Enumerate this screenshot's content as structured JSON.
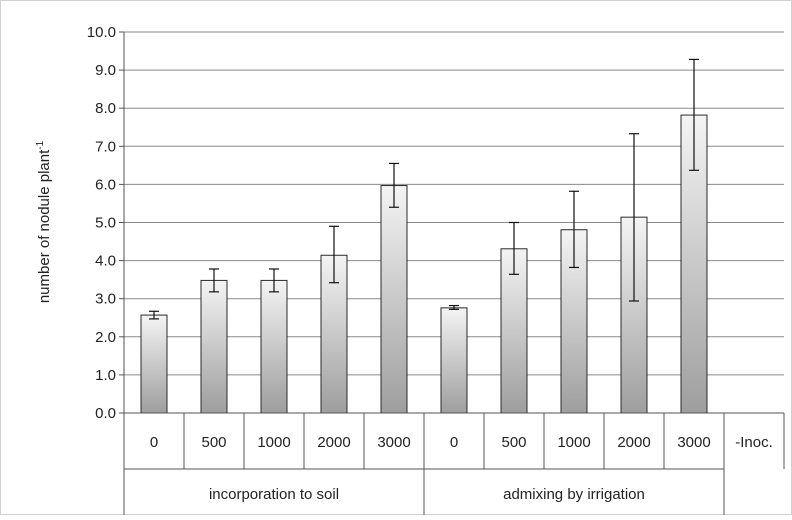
{
  "chart_data": {
    "type": "bar",
    "ylabel": "number of nodule plant",
    "ylabel_superscript": "-1",
    "ylim": [
      0,
      10
    ],
    "yticks": [
      "0.0",
      "1.0",
      "2.0",
      "3.0",
      "4.0",
      "5.0",
      "6.0",
      "7.0",
      "8.0",
      "9.0",
      "10.0"
    ],
    "grid": true,
    "categories": [
      "0",
      "500",
      "1000",
      "2000",
      "3000",
      "0",
      "500",
      "1000",
      "2000",
      "3000",
      "-Inoc."
    ],
    "values": [
      2.57,
      3.48,
      3.48,
      4.14,
      5.97,
      2.76,
      4.31,
      4.81,
      5.14,
      7.82,
      0
    ],
    "error_low": [
      2.47,
      3.18,
      3.18,
      3.42,
      5.4,
      2.72,
      3.64,
      3.82,
      2.94,
      6.37,
      0
    ],
    "error_high": [
      2.67,
      3.78,
      3.78,
      4.9,
      6.55,
      2.82,
      5.0,
      5.82,
      7.33,
      9.28,
      0
    ],
    "groups": [
      {
        "label": "incorporation to soil",
        "start": 0,
        "end": 4
      },
      {
        "label": "admixing by irrigation",
        "start": 5,
        "end": 10
      }
    ]
  },
  "colors": {
    "bar_gradient_top": "#f4f4f4",
    "bar_gradient_bottom": "#9e9e9e",
    "bar_stroke": "#2a2a2a",
    "grid": "#8a8a8a",
    "axis": "#555555"
  }
}
